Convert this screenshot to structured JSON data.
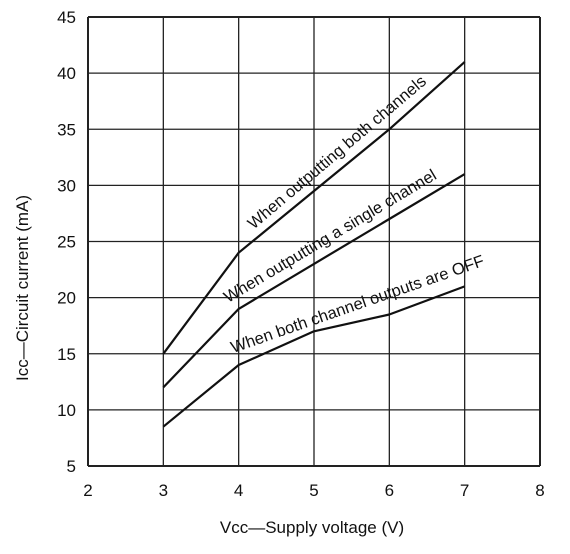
{
  "chart_data": {
    "type": "line",
    "title": "",
    "xlabel": "Vcc—Supply voltage (V)",
    "ylabel": "Icc—Circuit current (mA)",
    "xlim": [
      2,
      8
    ],
    "ylim": [
      5,
      45
    ],
    "xticks": [
      "2",
      "3",
      "4",
      "5",
      "6",
      "7",
      "8"
    ],
    "yticks": [
      "5",
      "10",
      "15",
      "20",
      "25",
      "30",
      "35",
      "40",
      "45"
    ],
    "grid": true,
    "series": [
      {
        "name": "When outputting both channels",
        "x": [
          3,
          4,
          5,
          6,
          7
        ],
        "y": [
          15,
          24,
          29.5,
          35,
          41
        ]
      },
      {
        "name": "When outputting a single channel",
        "x": [
          3,
          4,
          5,
          6,
          7
        ],
        "y": [
          12,
          19,
          23,
          27,
          31
        ]
      },
      {
        "name": "When both channel outputs are OFF",
        "x": [
          3,
          4,
          5,
          6,
          7
        ],
        "y": [
          8.5,
          14,
          17,
          18.5,
          21
        ]
      }
    ]
  },
  "colors": {
    "line": "#111111",
    "grid": "#222222",
    "background": "#ffffff"
  }
}
